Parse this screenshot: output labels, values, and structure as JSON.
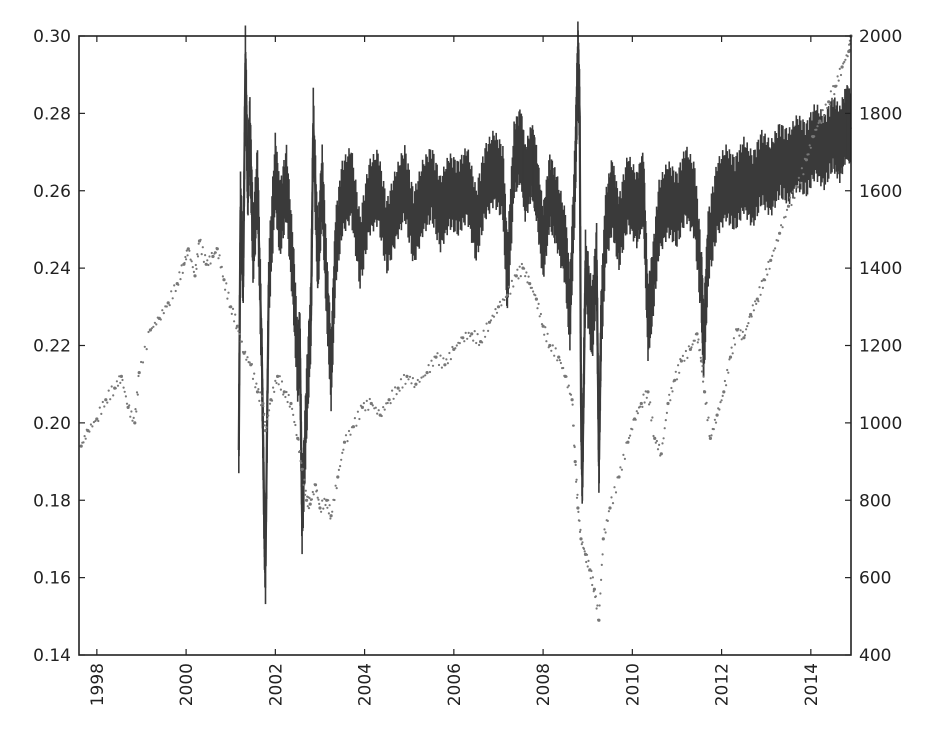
{
  "chart_data": {
    "type": "line",
    "title": "",
    "xlabel": "",
    "ylabel_left": "",
    "ylabel_right": "",
    "xlim": [
      1997.6,
      2014.9
    ],
    "ylim_left": [
      0.14,
      0.3
    ],
    "ylim_right": [
      400,
      2000
    ],
    "grid": false,
    "legend": "none",
    "x_ticks": [
      "1998",
      "2000",
      "2002",
      "2004",
      "2006",
      "2008",
      "2010",
      "2012",
      "2014"
    ],
    "y_ticks_left": [
      "0.14",
      "0.16",
      "0.18",
      "0.20",
      "0.22",
      "0.24",
      "0.26",
      "0.28",
      "0.30"
    ],
    "y_ticks_right": [
      "400",
      "600",
      "800",
      "1000",
      "1200",
      "1400",
      "1600",
      "1800",
      "2000"
    ],
    "series": [
      {
        "axis": "left",
        "style": "line",
        "color": "#3a3a3a",
        "points": [
          [
            2001.18,
            0.193
          ],
          [
            2001.22,
            0.255
          ],
          [
            2001.28,
            0.238
          ],
          [
            2001.33,
            0.293
          ],
          [
            2001.38,
            0.262
          ],
          [
            2001.43,
            0.275
          ],
          [
            2001.5,
            0.245
          ],
          [
            2001.6,
            0.262
          ],
          [
            2001.7,
            0.215
          ],
          [
            2001.75,
            0.175
          ],
          [
            2001.78,
            0.163
          ],
          [
            2001.85,
            0.235
          ],
          [
            2002.0,
            0.265
          ],
          [
            2002.1,
            0.252
          ],
          [
            2002.25,
            0.262
          ],
          [
            2002.4,
            0.238
          ],
          [
            2002.5,
            0.215
          ],
          [
            2002.55,
            0.22
          ],
          [
            2002.6,
            0.175
          ],
          [
            2002.7,
            0.205
          ],
          [
            2002.8,
            0.228
          ],
          [
            2002.85,
            0.277
          ],
          [
            2002.95,
            0.242
          ],
          [
            2003.05,
            0.262
          ],
          [
            2003.15,
            0.235
          ],
          [
            2003.25,
            0.213
          ],
          [
            2003.35,
            0.245
          ],
          [
            2003.5,
            0.258
          ],
          [
            2003.7,
            0.262
          ],
          [
            2003.9,
            0.244
          ],
          [
            2004.1,
            0.258
          ],
          [
            2004.3,
            0.261
          ],
          [
            2004.5,
            0.248
          ],
          [
            2004.7,
            0.256
          ],
          [
            2004.9,
            0.262
          ],
          [
            2005.1,
            0.25
          ],
          [
            2005.3,
            0.258
          ],
          [
            2005.5,
            0.262
          ],
          [
            2005.7,
            0.254
          ],
          [
            2005.9,
            0.26
          ],
          [
            2006.1,
            0.258
          ],
          [
            2006.3,
            0.262
          ],
          [
            2006.5,
            0.251
          ],
          [
            2006.7,
            0.262
          ],
          [
            2006.9,
            0.266
          ],
          [
            2007.1,
            0.262
          ],
          [
            2007.2,
            0.237
          ],
          [
            2007.35,
            0.268
          ],
          [
            2007.5,
            0.272
          ],
          [
            2007.6,
            0.262
          ],
          [
            2007.75,
            0.268
          ],
          [
            2007.85,
            0.262
          ],
          [
            2008.0,
            0.246
          ],
          [
            2008.15,
            0.26
          ],
          [
            2008.3,
            0.255
          ],
          [
            2008.5,
            0.245
          ],
          [
            2008.6,
            0.228
          ],
          [
            2008.72,
            0.265
          ],
          [
            2008.78,
            0.294
          ],
          [
            2008.82,
            0.28
          ],
          [
            2008.85,
            0.205
          ],
          [
            2008.88,
            0.186
          ],
          [
            2008.95,
            0.24
          ],
          [
            2009.1,
            0.225
          ],
          [
            2009.2,
            0.242
          ],
          [
            2009.25,
            0.19
          ],
          [
            2009.3,
            0.225
          ],
          [
            2009.4,
            0.25
          ],
          [
            2009.55,
            0.259
          ],
          [
            2009.7,
            0.249
          ],
          [
            2009.9,
            0.26
          ],
          [
            2010.1,
            0.255
          ],
          [
            2010.25,
            0.261
          ],
          [
            2010.35,
            0.226
          ],
          [
            2010.45,
            0.235
          ],
          [
            2010.6,
            0.253
          ],
          [
            2010.8,
            0.258
          ],
          [
            2011.0,
            0.255
          ],
          [
            2011.2,
            0.262
          ],
          [
            2011.4,
            0.257
          ],
          [
            2011.55,
            0.235
          ],
          [
            2011.6,
            0.22
          ],
          [
            2011.7,
            0.245
          ],
          [
            2011.9,
            0.258
          ],
          [
            2012.1,
            0.262
          ],
          [
            2012.3,
            0.259
          ],
          [
            2012.5,
            0.264
          ],
          [
            2012.7,
            0.26
          ],
          [
            2012.9,
            0.266
          ],
          [
            2013.1,
            0.263
          ],
          [
            2013.3,
            0.268
          ],
          [
            2013.5,
            0.266
          ],
          [
            2013.7,
            0.27
          ],
          [
            2013.9,
            0.268
          ],
          [
            2014.1,
            0.273
          ],
          [
            2014.3,
            0.27
          ],
          [
            2014.5,
            0.275
          ],
          [
            2014.65,
            0.272
          ],
          [
            2014.8,
            0.278
          ],
          [
            2014.9,
            0.276
          ]
        ]
      },
      {
        "axis": "right",
        "style": "dots",
        "color": "#777777",
        "points": [
          [
            1997.65,
            940
          ],
          [
            1997.8,
            980
          ],
          [
            1998.0,
            1010
          ],
          [
            1998.2,
            1060
          ],
          [
            1998.4,
            1090
          ],
          [
            1998.55,
            1120
          ],
          [
            1998.7,
            1040
          ],
          [
            1998.85,
            1000
          ],
          [
            1998.95,
            1130
          ],
          [
            1999.2,
            1240
          ],
          [
            1999.4,
            1270
          ],
          [
            1999.6,
            1310
          ],
          [
            1999.8,
            1360
          ],
          [
            1999.95,
            1410
          ],
          [
            2000.05,
            1450
          ],
          [
            2000.2,
            1380
          ],
          [
            2000.3,
            1470
          ],
          [
            2000.45,
            1410
          ],
          [
            2000.6,
            1430
          ],
          [
            2000.7,
            1450
          ],
          [
            2000.85,
            1370
          ],
          [
            2001.0,
            1300
          ],
          [
            2001.15,
            1250
          ],
          [
            2001.3,
            1180
          ],
          [
            2001.45,
            1150
          ],
          [
            2001.6,
            1080
          ],
          [
            2001.72,
            1050
          ],
          [
            2001.78,
            980
          ],
          [
            2001.9,
            1060
          ],
          [
            2002.05,
            1120
          ],
          [
            2002.2,
            1080
          ],
          [
            2002.35,
            1050
          ],
          [
            2002.5,
            960
          ],
          [
            2002.6,
            880
          ],
          [
            2002.7,
            800
          ],
          [
            2002.78,
            790
          ],
          [
            2002.9,
            840
          ],
          [
            2003.0,
            780
          ],
          [
            2003.15,
            800
          ],
          [
            2003.25,
            760
          ],
          [
            2003.4,
            860
          ],
          [
            2003.55,
            950
          ],
          [
            2003.75,
            990
          ],
          [
            2003.95,
            1040
          ],
          [
            2004.15,
            1050
          ],
          [
            2004.35,
            1020
          ],
          [
            2004.55,
            1060
          ],
          [
            2004.75,
            1090
          ],
          [
            2004.95,
            1120
          ],
          [
            2005.15,
            1100
          ],
          [
            2005.4,
            1130
          ],
          [
            2005.6,
            1170
          ],
          [
            2005.8,
            1150
          ],
          [
            2006.0,
            1190
          ],
          [
            2006.2,
            1220
          ],
          [
            2006.4,
            1230
          ],
          [
            2006.6,
            1210
          ],
          [
            2006.8,
            1260
          ],
          [
            2007.0,
            1300
          ],
          [
            2007.2,
            1330
          ],
          [
            2007.4,
            1380
          ],
          [
            2007.55,
            1400
          ],
          [
            2007.7,
            1360
          ],
          [
            2007.85,
            1320
          ],
          [
            2008.0,
            1250
          ],
          [
            2008.15,
            1200
          ],
          [
            2008.35,
            1170
          ],
          [
            2008.5,
            1120
          ],
          [
            2008.65,
            1060
          ],
          [
            2008.72,
            900
          ],
          [
            2008.78,
            780
          ],
          [
            2008.85,
            700
          ],
          [
            2008.95,
            660
          ],
          [
            2009.05,
            620
          ],
          [
            2009.15,
            570
          ],
          [
            2009.25,
            490
          ],
          [
            2009.35,
            700
          ],
          [
            2009.5,
            780
          ],
          [
            2009.7,
            860
          ],
          [
            2009.9,
            950
          ],
          [
            2010.05,
            1010
          ],
          [
            2010.2,
            1050
          ],
          [
            2010.35,
            1080
          ],
          [
            2010.5,
            960
          ],
          [
            2010.65,
            920
          ],
          [
            2010.8,
            1050
          ],
          [
            2010.95,
            1110
          ],
          [
            2011.1,
            1160
          ],
          [
            2011.3,
            1190
          ],
          [
            2011.45,
            1230
          ],
          [
            2011.55,
            1160
          ],
          [
            2011.62,
            1080
          ],
          [
            2011.75,
            960
          ],
          [
            2011.9,
            1020
          ],
          [
            2012.05,
            1080
          ],
          [
            2012.2,
            1170
          ],
          [
            2012.35,
            1240
          ],
          [
            2012.5,
            1220
          ],
          [
            2012.65,
            1280
          ],
          [
            2012.8,
            1320
          ],
          [
            2012.95,
            1370
          ],
          [
            2013.1,
            1420
          ],
          [
            2013.3,
            1490
          ],
          [
            2013.5,
            1560
          ],
          [
            2013.7,
            1610
          ],
          [
            2013.9,
            1680
          ],
          [
            2014.05,
            1740
          ],
          [
            2014.2,
            1780
          ],
          [
            2014.4,
            1830
          ],
          [
            2014.55,
            1870
          ],
          [
            2014.7,
            1920
          ],
          [
            2014.85,
            1960
          ],
          [
            2014.9,
            2000
          ]
        ]
      }
    ]
  }
}
